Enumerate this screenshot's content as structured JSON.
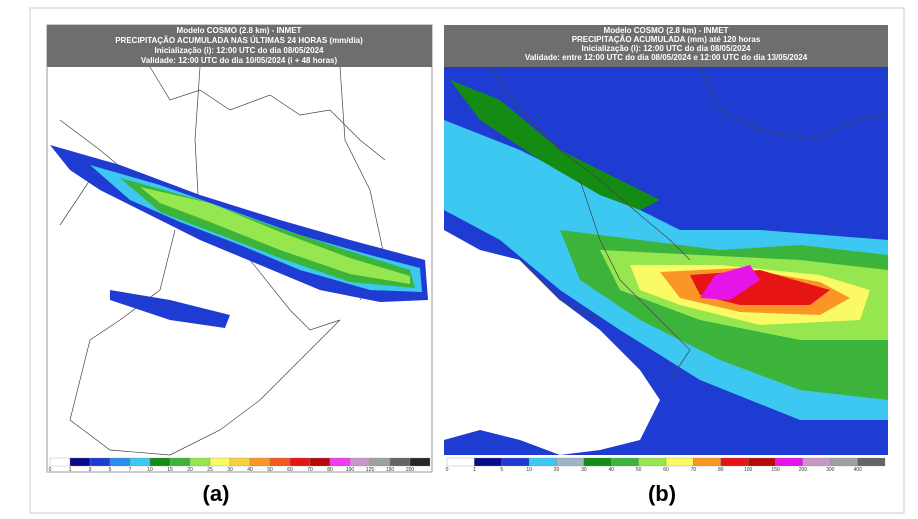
{
  "panels": [
    {
      "header": [
        "Modelo COSMO (2.8 km) - INMET",
        "PRECIPITAÇÃO ACUMULADA NAS ÚLTIMAS 24 HORAS (mm/dia)",
        "Inicialização (i): 12:00 UTC do dia 08/05/2024",
        "Validade: 12:00 UTC do dia 10/05/2024 (i + 48 horas)"
      ],
      "colorbar": {
        "labels": [
          0,
          1,
          3,
          5,
          7,
          10,
          15,
          20,
          25,
          30,
          40,
          50,
          60,
          70,
          80,
          100,
          125,
          150,
          200
        ],
        "colors": [
          "#ffffff",
          "#0a0a8c",
          "#1e3cd2",
          "#2d8cf0",
          "#3cc8f0",
          "#148c14",
          "#3cb43c",
          "#96e650",
          "#fafa64",
          "#fad23c",
          "#fa9628",
          "#f05a1e",
          "#e61414",
          "#b40a0a",
          "#f03cf0",
          "#c896c8",
          "#a0a0a0",
          "#646464",
          "#282828"
        ]
      },
      "caption": "(a)"
    },
    {
      "header": [
        "Modelo COSMO (2.8 km) - INMET",
        "PRECIPITAÇÃO ACUMULADA (mm) até 120 horas",
        "Inicialização (i): 12:00 UTC do dia 08/05/2024",
        "Validade: entre 12:00 UTC do dia 08/05/2024 e 12:00 UTC do dia 13/05/2024"
      ],
      "colorbar": {
        "labels": [
          0,
          1,
          5,
          10,
          20,
          30,
          40,
          50,
          60,
          70,
          80,
          100,
          150,
          200,
          300,
          400
        ],
        "colors": [
          "#ffffff",
          "#0a0a8c",
          "#1e3cd2",
          "#3cc8f0",
          "#a0b4c8",
          "#148c14",
          "#3cb43c",
          "#96e650",
          "#fafa64",
          "#fa9628",
          "#e61414",
          "#b40a0a",
          "#e614e6",
          "#c896c8",
          "#a0a0a0",
          "#646464"
        ]
      },
      "caption": "(b)"
    }
  ]
}
